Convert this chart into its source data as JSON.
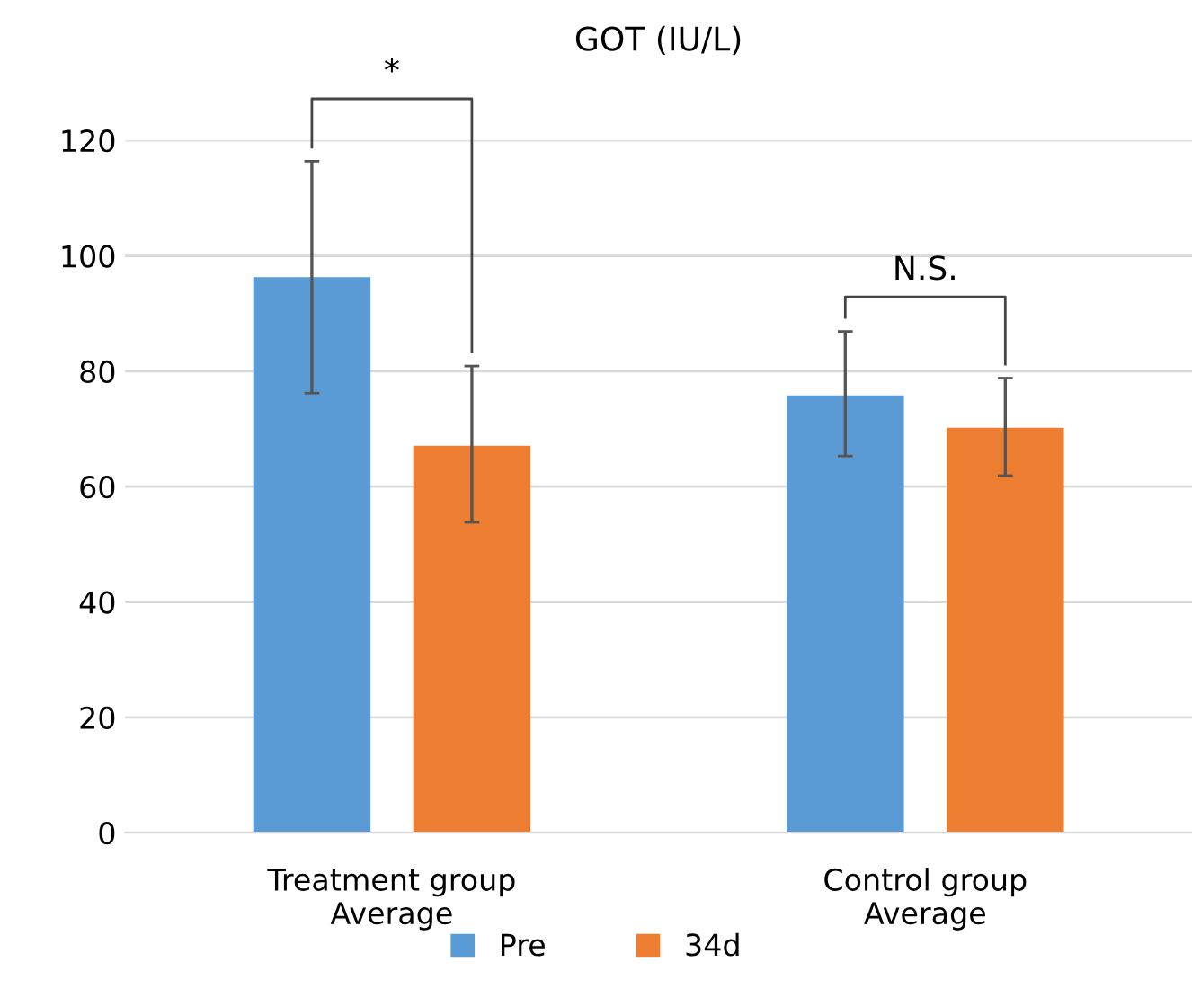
{
  "chart_data": {
    "type": "bar",
    "title": "GOT (IU/L)",
    "categories": [
      "Treatment group\nAverage",
      "Control group\nAverage"
    ],
    "series": [
      {
        "name": "Pre",
        "color": "#5b9bd5",
        "values": [
          96.3,
          75.8
        ],
        "errors": [
          [
            76.2,
            116.4
          ],
          [
            65.3,
            86.9
          ]
        ]
      },
      {
        "name": "34d",
        "color": "#ed7d31",
        "values": [
          67.1,
          70.2
        ],
        "errors": [
          [
            53.8,
            80.9
          ],
          [
            61.9,
            78.8
          ]
        ]
      }
    ],
    "ylim": [
      0,
      120
    ],
    "yticks": [
      0,
      20,
      40,
      60,
      80,
      100,
      120
    ],
    "grid": "y",
    "legend": "bottom",
    "annotations": [
      "*",
      "N.S."
    ]
  }
}
